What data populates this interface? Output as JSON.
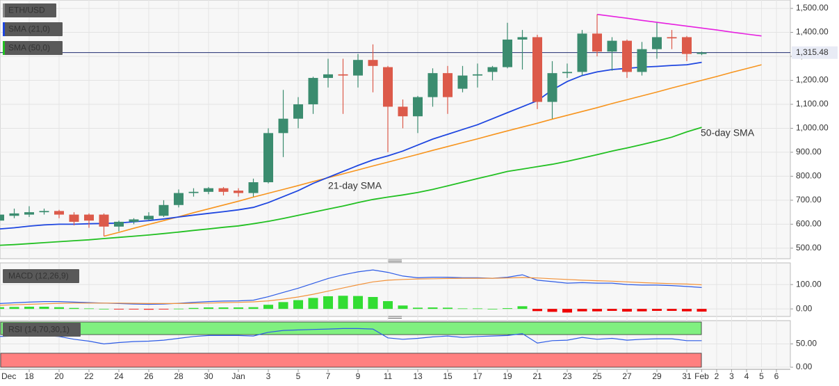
{
  "chart_data": [
    {
      "type": "candlestick",
      "title": "ETH/USD",
      "grid": true,
      "up_color": "#3b8c6f",
      "down_color": "#dc5a4a",
      "categories": [
        "Dec",
        null,
        "18",
        null,
        "20",
        null,
        "22",
        null,
        "24",
        null,
        "26",
        null,
        "28",
        null,
        "30",
        null,
        "Jan",
        null,
        "3",
        null,
        "5",
        null,
        "7",
        null,
        "9",
        null,
        "11",
        null,
        "13",
        null,
        "15",
        null,
        "17",
        null,
        "19",
        null,
        "21",
        null,
        "23",
        null,
        "25",
        null,
        "27",
        null,
        "29",
        null,
        "31",
        "Feb",
        "2",
        "3",
        "4",
        "5",
        "6"
      ],
      "open": [
        615,
        635,
        640,
        650,
        655,
        640,
        640,
        640,
        590,
        610,
        620,
        635,
        680,
        730,
        735,
        750,
        740,
        730,
        775,
        980,
        1040,
        1100,
        1210,
        1225,
        1220,
        1285,
        1255,
        1090,
        1050,
        1130,
        1230,
        1165,
        1220,
        1235,
        1255,
        1370,
        1380,
        1110,
        1230,
        1235,
        1395,
        1320,
        1365,
        1235,
        1330,
        1380,
        1380,
        1310,
        null,
        null,
        null,
        null,
        null
      ],
      "high": [
        660,
        665,
        675,
        665,
        660,
        650,
        645,
        645,
        615,
        625,
        650,
        700,
        745,
        750,
        755,
        755,
        750,
        790,
        1000,
        1160,
        1130,
        1215,
        1290,
        1290,
        1310,
        1350,
        1260,
        1120,
        1135,
        1250,
        1260,
        1260,
        1270,
        1260,
        1440,
        1410,
        1390,
        1280,
        1270,
        1410,
        1475,
        1380,
        1370,
        1360,
        1440,
        1410,
        1385,
        1320,
        null,
        null,
        null,
        null,
        null
      ],
      "low": [
        600,
        625,
        630,
        640,
        625,
        595,
        585,
        550,
        570,
        600,
        615,
        630,
        670,
        715,
        725,
        720,
        715,
        715,
        770,
        880,
        1000,
        1060,
        1170,
        1060,
        1170,
        1150,
        900,
        1000,
        980,
        1090,
        1060,
        1150,
        1170,
        1200,
        1250,
        1245,
        1080,
        1040,
        1210,
        1220,
        1300,
        1240,
        1210,
        1220,
        1290,
        1330,
        1280,
        1305,
        null,
        null,
        null,
        null,
        null
      ],
      "close": [
        640,
        645,
        650,
        655,
        640,
        610,
        615,
        590,
        610,
        620,
        635,
        680,
        730,
        735,
        750,
        735,
        730,
        775,
        980,
        1040,
        1100,
        1210,
        1225,
        1220,
        1285,
        1260,
        1090,
        1050,
        1130,
        1230,
        1130,
        1220,
        1225,
        1255,
        1370,
        1380,
        1110,
        1230,
        1235,
        1395,
        1320,
        1365,
        1235,
        1330,
        1380,
        1375,
        1310,
        1315.48,
        null,
        null,
        null,
        null,
        null
      ],
      "ylim": [
        456,
        1535
      ],
      "yticks": [
        {
          "value": 500,
          "label": "500.00"
        },
        {
          "value": 600,
          "label": "600.00"
        },
        {
          "value": 700,
          "label": "700.00"
        },
        {
          "value": 800,
          "label": "800.00"
        },
        {
          "value": 900,
          "label": "900.00"
        },
        {
          "value": 1000,
          "label": "1,000.00"
        },
        {
          "value": 1100,
          "label": "1,100.00"
        },
        {
          "value": 1200,
          "label": "1,200.00"
        },
        {
          "value": 1300,
          "label": "1,300.00"
        },
        {
          "value": 1400,
          "label": "1,400.00"
        },
        {
          "value": 1500,
          "label": "1,500.00"
        }
      ],
      "last_price": {
        "value": 1315.48,
        "label": "1,315.48",
        "color": "#1c2b6e"
      },
      "overlays": [
        {
          "name": "SMA (21,0)",
          "color": "#1e46e0",
          "values": [
            580,
            585,
            592,
            597,
            600,
            600,
            602,
            603,
            605,
            610,
            615,
            622,
            630,
            638,
            645,
            652,
            660,
            670,
            690,
            715,
            740,
            770,
            795,
            820,
            845,
            868,
            885,
            905,
            930,
            955,
            975,
            995,
            1015,
            1040,
            1065,
            1090,
            1115,
            1160,
            1195,
            1220,
            1235,
            1245,
            1250,
            1255,
            1258,
            1262,
            1265,
            1275,
            null,
            null,
            null,
            null,
            null
          ]
        },
        {
          "name": "SMA (50,0)",
          "color": "#22c022",
          "values": [
            512,
            515,
            519,
            523,
            527,
            531,
            535,
            540,
            545,
            550,
            555,
            561,
            567,
            574,
            580,
            587,
            593,
            602,
            612,
            624,
            637,
            650,
            663,
            676,
            690,
            703,
            713,
            722,
            732,
            745,
            760,
            775,
            790,
            805,
            820,
            830,
            840,
            850,
            862,
            876,
            890,
            905,
            918,
            932,
            947,
            963,
            985,
            1004,
            null,
            null,
            null,
            null,
            null
          ]
        }
      ],
      "trendlines": [
        {
          "color": "#f7941d",
          "values": [
            null,
            null,
            null,
            null,
            null,
            null,
            null,
            550,
            566,
            583,
            599,
            615,
            631,
            648,
            664,
            680,
            696,
            713,
            729,
            745,
            761,
            778,
            794,
            810,
            826,
            843,
            859,
            875,
            891,
            908,
            924,
            940,
            956,
            973,
            989,
            1005,
            1021,
            1038,
            1054,
            1070,
            1086,
            1103,
            1119,
            1135,
            1151,
            1168,
            1184,
            1200,
            1216,
            1233,
            1249,
            1265,
            null
          ]
        },
        {
          "color": "#e620e0",
          "values": [
            null,
            null,
            null,
            null,
            null,
            null,
            null,
            null,
            null,
            null,
            null,
            null,
            null,
            null,
            null,
            null,
            null,
            null,
            null,
            null,
            null,
            null,
            null,
            null,
            null,
            null,
            null,
            null,
            null,
            null,
            null,
            null,
            null,
            null,
            null,
            null,
            null,
            null,
            null,
            null,
            1475,
            1467,
            1459,
            1450,
            1442,
            1434,
            1426,
            1418,
            1410,
            1401,
            1393,
            1385,
            null
          ]
        }
      ],
      "annotations": [
        {
          "text": "21-day SMA",
          "color": "#4a5fd0"
        },
        {
          "text": "50-day SMA",
          "color": "#22b422"
        }
      ]
    },
    {
      "type": "macd",
      "title": "MACD (12,26,9)",
      "grid": true,
      "ylim": [
        -31,
        189
      ],
      "yticks": [
        {
          "value": 100,
          "label": "100.00"
        },
        {
          "value": 0,
          "label": "0.00"
        }
      ],
      "histogram": {
        "up_color": "#33dd33",
        "down_color": "#ee0000",
        "values": [
          7,
          8,
          9,
          9,
          7,
          4,
          2,
          0,
          -2,
          -2,
          -3,
          -2,
          1,
          4,
          6,
          6,
          6,
          7,
          17,
          28,
          36,
          45,
          52,
          54,
          53,
          49,
          32,
          14,
          5,
          6,
          5,
          2,
          2,
          0,
          3,
          11,
          -9,
          -12,
          -15,
          -10,
          -10,
          -8,
          -11,
          -10,
          -8,
          -8,
          -10,
          -11,
          null,
          null,
          null,
          null,
          null
        ]
      },
      "series": [
        {
          "color": "#2d5be6",
          "values": [
            22,
            25,
            28,
            30,
            30,
            28,
            26,
            24,
            22,
            20,
            19,
            20,
            23,
            27,
            30,
            32,
            33,
            36,
            50,
            68,
            85,
            105,
            125,
            140,
            152,
            160,
            150,
            135,
            128,
            130,
            130,
            128,
            128,
            126,
            130,
            140,
            118,
            112,
            106,
            108,
            106,
            106,
            100,
            98,
            98,
            96,
            92,
            88,
            null,
            null,
            null,
            null,
            null
          ]
        },
        {
          "color": "#f2923a",
          "values": [
            15,
            17,
            19,
            21,
            23,
            24,
            24,
            24,
            24,
            23,
            22,
            22,
            22,
            23,
            24,
            26,
            27,
            29,
            33,
            40,
            49,
            60,
            73,
            86,
            99,
            111,
            118,
            121,
            123,
            124,
            125,
            126,
            126,
            126,
            127,
            129,
            127,
            124,
            121,
            118,
            116,
            114,
            111,
            108,
            106,
            104,
            102,
            99,
            null,
            null,
            null,
            null,
            null
          ]
        }
      ]
    },
    {
      "type": "rsi",
      "title": "RSI (14,70,30,1)",
      "grid": true,
      "ylim": [
        0,
        100
      ],
      "yticks": [
        {
          "value": 50,
          "label": "50.00"
        },
        {
          "value": 0,
          "label": "0.00"
        }
      ],
      "bands": [
        {
          "range": [
            70,
            100
          ],
          "color": "#80f080"
        },
        {
          "range": [
            0,
            30
          ],
          "color": "#ff8080"
        }
      ],
      "series": [
        {
          "color": "#2d5be6",
          "values": [
            66,
            67,
            67,
            68,
            66,
            60,
            56,
            50,
            53,
            55,
            56,
            58,
            62,
            66,
            68,
            68,
            68,
            67,
            75,
            79,
            80,
            81,
            82,
            83,
            83,
            82,
            63,
            60,
            62,
            65,
            67,
            64,
            66,
            67,
            68,
            72,
            52,
            57,
            58,
            64,
            60,
            62,
            58,
            60,
            61,
            61,
            57,
            57,
            null,
            null,
            null,
            null,
            null
          ]
        }
      ]
    }
  ]
}
